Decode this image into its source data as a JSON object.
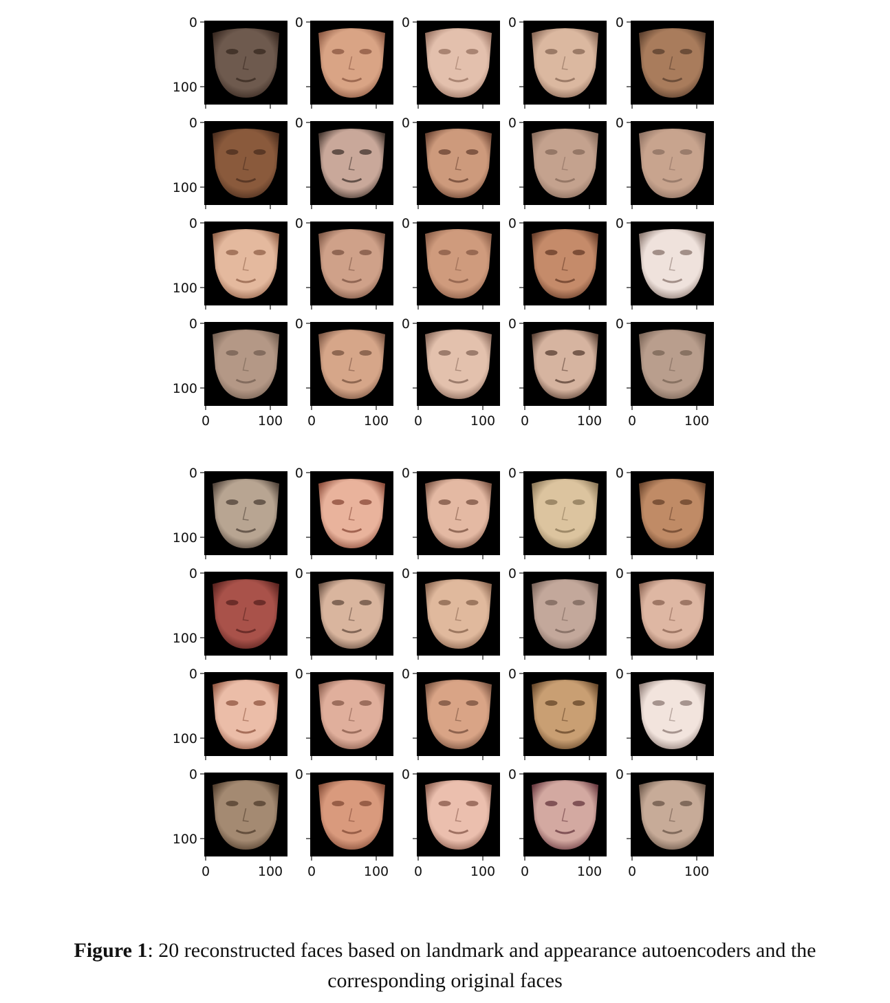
{
  "figure": {
    "grids": [
      {
        "name": "reconstructed",
        "rows": 4,
        "cols": 5,
        "y_ticks": [
          "0",
          "100"
        ],
        "x_ticks": [
          "0",
          "100"
        ],
        "panels": [
          {
            "skin": "#6e5a4e",
            "shade": "#3a2a22"
          },
          {
            "skin": "#d9a485",
            "shade": "#8d5a44"
          },
          {
            "skin": "#e3c0ad",
            "shade": "#9a7463"
          },
          {
            "skin": "#dbb8a0",
            "shade": "#8b6a58"
          },
          {
            "skin": "#a97c5c",
            "shade": "#5d412f"
          },
          {
            "skin": "#8a5a3c",
            "shade": "#4d2f1f"
          },
          {
            "skin": "#c9a89a",
            "shade": "#4a3a33"
          },
          {
            "skin": "#cd9a7c",
            "shade": "#6e4634"
          },
          {
            "skin": "#c4a28e",
            "shade": "#8a6d5d"
          },
          {
            "skin": "#c8a48e",
            "shade": "#8f7263"
          },
          {
            "skin": "#e4b99e",
            "shade": "#95654c"
          },
          {
            "skin": "#cfa189",
            "shade": "#7f5846"
          },
          {
            "skin": "#cf9b7d",
            "shade": "#8a5d47"
          },
          {
            "skin": "#c58b6a",
            "shade": "#6a3f2b"
          },
          {
            "skin": "#efe2dc",
            "shade": "#8e7b73"
          },
          {
            "skin": "#b49886",
            "shade": "#776254"
          },
          {
            "skin": "#d6a689",
            "shade": "#7d5744"
          },
          {
            "skin": "#e3c1ad",
            "shade": "#8a6a5b"
          },
          {
            "skin": "#d6b4a0",
            "shade": "#5f4538"
          },
          {
            "skin": "#b99e8d",
            "shade": "#7c6658"
          }
        ]
      },
      {
        "name": "original",
        "rows": 4,
        "cols": 5,
        "y_ticks": [
          "0",
          "100"
        ],
        "x_ticks": [
          "0",
          "100"
        ],
        "panels": [
          {
            "skin": "#b8a592",
            "shade": "#54463c"
          },
          {
            "skin": "#e9b39c",
            "shade": "#8e4f3d"
          },
          {
            "skin": "#e4b9a3",
            "shade": "#7e5645"
          },
          {
            "skin": "#dcc49f",
            "shade": "#8f7a5a"
          },
          {
            "skin": "#c08b66",
            "shade": "#6b452d"
          },
          {
            "skin": "#a9524a",
            "shade": "#5c2420"
          },
          {
            "skin": "#d9b59e",
            "shade": "#6b5244"
          },
          {
            "skin": "#e0b99d",
            "shade": "#8b6650"
          },
          {
            "skin": "#c3a89b",
            "shade": "#7d665c"
          },
          {
            "skin": "#deb7a3",
            "shade": "#8d6655"
          },
          {
            "skin": "#ebbda8",
            "shade": "#955a45"
          },
          {
            "skin": "#e0af9c",
            "shade": "#8b5e4e"
          },
          {
            "skin": "#d9a486",
            "shade": "#7a5340"
          },
          {
            "skin": "#c99f73",
            "shade": "#6a4a2c"
          },
          {
            "skin": "#f2e4dd",
            "shade": "#92807a"
          },
          {
            "skin": "#a48a72",
            "shade": "#54402f"
          },
          {
            "skin": "#d99a7d",
            "shade": "#874f3a"
          },
          {
            "skin": "#ebbfae",
            "shade": "#8c5e4f"
          },
          {
            "skin": "#d3a9a1",
            "shade": "#6d3d43"
          },
          {
            "skin": "#c7ab98",
            "shade": "#6f5a4c"
          }
        ]
      }
    ]
  },
  "caption": {
    "label": "Figure 1",
    "text": ": 20 reconstructed faces based on landmark and appearance autoencoders and the corresponding original faces"
  }
}
